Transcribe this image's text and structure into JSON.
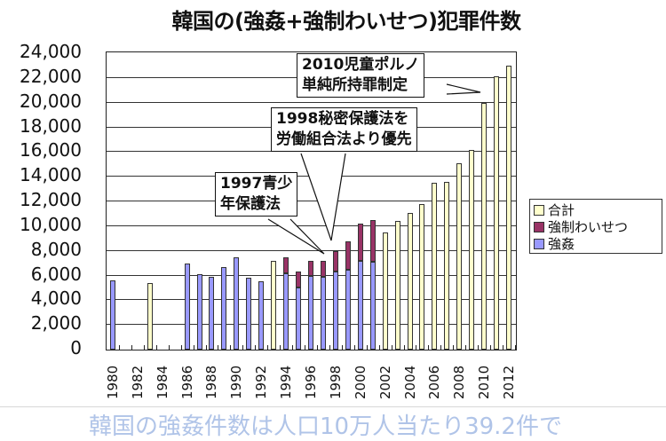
{
  "chart_data": {
    "type": "bar",
    "title": "韓国の(強姦+強制わいせつ)犯罪件数",
    "xlabel": "",
    "ylabel": "",
    "ylim": [
      0,
      24000
    ],
    "yticks": [
      "0",
      "2,000",
      "4,000",
      "6,000",
      "8,000",
      "10,000",
      "12,000",
      "14,000",
      "16,000",
      "18,000",
      "20,000",
      "22,000",
      "24,000"
    ],
    "xtick_labels": [
      "1980",
      "1982",
      "1984",
      "1986",
      "1988",
      "1990",
      "1992",
      "1994",
      "1996",
      "1998",
      "2000",
      "2002",
      "2004",
      "2006",
      "2008",
      "2010",
      "2012"
    ],
    "grid": true,
    "legend_position": "right",
    "categories": [
      1980,
      1981,
      1982,
      1983,
      1984,
      1985,
      1986,
      1987,
      1988,
      1989,
      1990,
      1991,
      1992,
      1993,
      1994,
      1995,
      1996,
      1997,
      1998,
      1999,
      2000,
      2001,
      2002,
      2003,
      2004,
      2005,
      2006,
      2007,
      2008,
      2009,
      2010,
      2011,
      2012
    ],
    "series": [
      {
        "name": "合計",
        "color": "#ffffcc",
        "values": [
          null,
          null,
          null,
          5400,
          null,
          null,
          null,
          null,
          null,
          null,
          null,
          null,
          null,
          7200,
          null,
          null,
          null,
          null,
          null,
          null,
          null,
          null,
          9500,
          10400,
          11100,
          11800,
          13500,
          13600,
          15100,
          16200,
          20000,
          22100,
          23000
        ]
      },
      {
        "name": "強制わいせつ",
        "color": "#993366",
        "values": [
          null,
          null,
          null,
          null,
          null,
          null,
          null,
          null,
          null,
          null,
          null,
          null,
          null,
          null,
          1300,
          1300,
          1200,
          1300,
          1700,
          2300,
          3000,
          3400,
          null,
          null,
          null,
          null,
          null,
          null,
          null,
          null,
          null,
          null,
          null
        ]
      },
      {
        "name": "強姦",
        "color": "#9999ff",
        "values": [
          5600,
          null,
          null,
          null,
          null,
          null,
          7000,
          6100,
          5900,
          6700,
          7500,
          5800,
          5500,
          null,
          6200,
          5000,
          6000,
          5900,
          6300,
          6500,
          7200,
          7100,
          null,
          null,
          null,
          null,
          null,
          null,
          null,
          null,
          null,
          null,
          null
        ]
      }
    ],
    "annotations": [
      {
        "text": "1997青少\n年保護法",
        "line1": "1997青少",
        "line2": "年保護法",
        "points_to": 1997
      },
      {
        "text": "1998秘密保護法を\n労働組合法より優先",
        "line1": "1998秘密保護法を",
        "line2": "労働組合法より優先",
        "points_to": 1998
      },
      {
        "text": "2010児童ポルノ\n単純所持罪制定",
        "line1": "2010児童ポルノ",
        "line2": "単純所持罪制定",
        "points_to": 2010
      }
    ]
  },
  "legend": [
    {
      "label": "合計",
      "color": "#ffffcc"
    },
    {
      "label": "強制わいせつ",
      "color": "#993366"
    },
    {
      "label": "強姦",
      "color": "#9999ff"
    }
  ],
  "footer_text": "韓国の強姦件数は人口10万人当たり39.2件で"
}
